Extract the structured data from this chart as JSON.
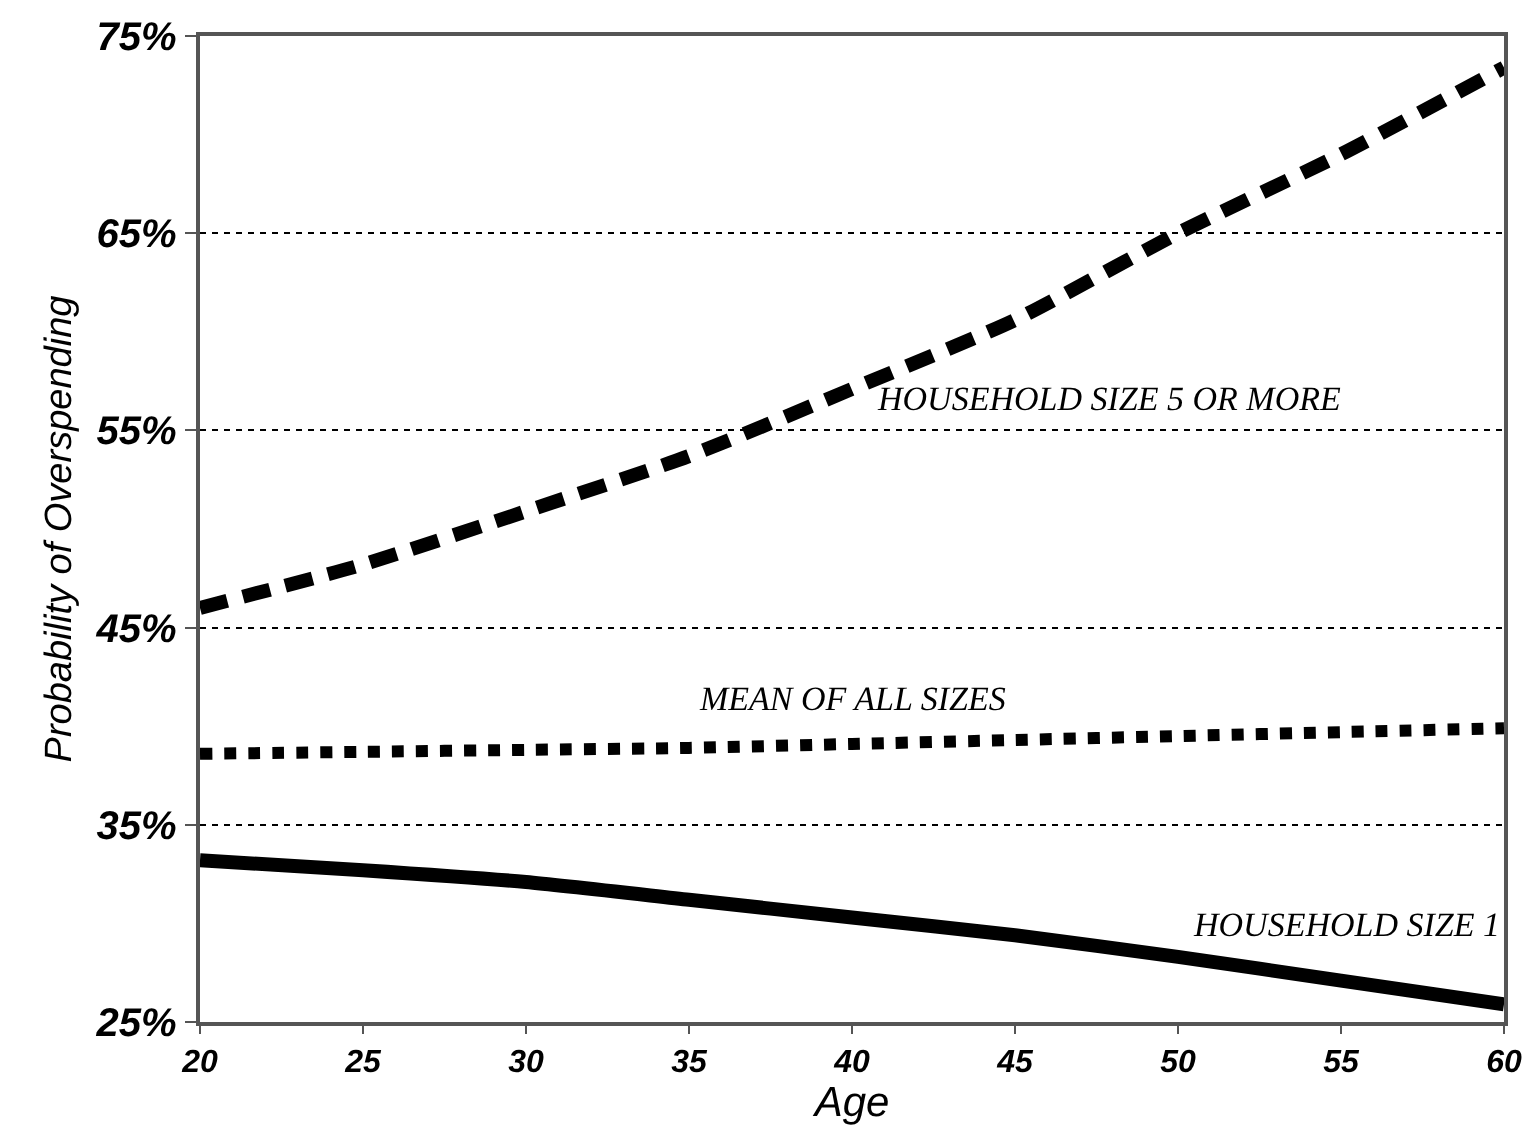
{
  "chart_data": {
    "type": "line",
    "xlabel": "Age",
    "ylabel": "Probability of Overspending",
    "x": [
      20,
      25,
      30,
      35,
      40,
      45,
      50,
      55,
      60
    ],
    "series": [
      {
        "name": "HOUSEHOLD SIZE 5 OR MORE",
        "color": "#000000",
        "line_style": "dashed",
        "values": [
          46.0,
          48.2,
          50.9,
          53.7,
          57.1,
          60.6,
          65.0,
          69.0,
          73.4
        ]
      },
      {
        "name": "MEAN OF ALL SIZES",
        "color": "#000000",
        "line_style": "dotted",
        "values": [
          38.6,
          38.7,
          38.8,
          38.9,
          39.1,
          39.3,
          39.5,
          39.7,
          39.9
        ]
      },
      {
        "name": "HOUSEHOLD SIZE 1",
        "color": "#000000",
        "line_style": "solid",
        "values": [
          33.2,
          32.7,
          32.1,
          31.2,
          30.3,
          29.4,
          28.3,
          27.1,
          25.9
        ]
      }
    ],
    "xlim": [
      20,
      60
    ],
    "xticks": [
      20,
      25,
      30,
      35,
      40,
      45,
      50,
      55,
      60
    ],
    "ylim": [
      25,
      75
    ],
    "yticks": [
      {
        "value": 25,
        "label": "25%"
      },
      {
        "value": 35,
        "label": "35%"
      },
      {
        "value": 45,
        "label": "45%"
      },
      {
        "value": 55,
        "label": "55%"
      },
      {
        "value": 65,
        "label": "65%"
      },
      {
        "value": 75,
        "label": "75%"
      }
    ],
    "grid": "y",
    "legend": false,
    "marker": "none"
  }
}
